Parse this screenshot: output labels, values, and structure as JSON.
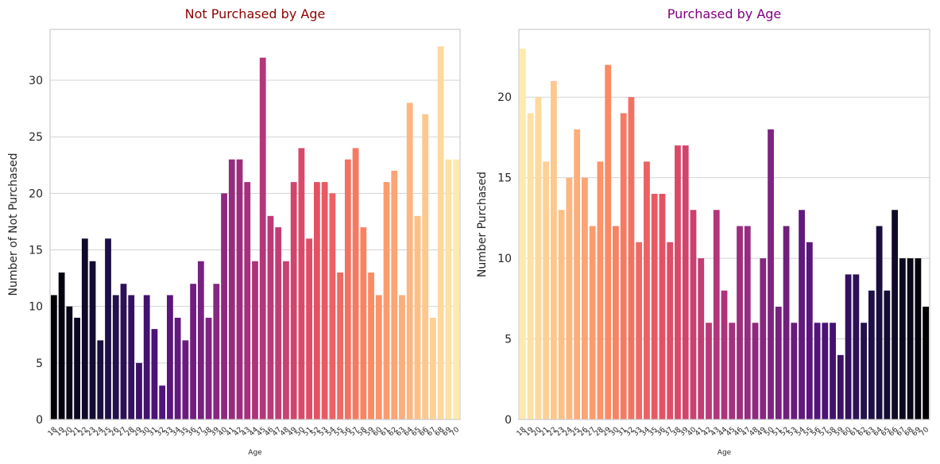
{
  "chart_data": [
    {
      "type": "bar",
      "title": "Not Purchased by Age",
      "title_color": "#8b0000",
      "xlabel": "Age",
      "ylabel": "Number of Not Purchased",
      "ylim": [
        0,
        34.5
      ],
      "yticks": [
        0,
        5,
        10,
        15,
        20,
        25,
        30
      ],
      "grid": "horizontal",
      "palette": "magma",
      "palette_direction": "dark-to-light",
      "categories": [
        "18",
        "19",
        "20",
        "21",
        "22",
        "23",
        "24",
        "25",
        "26",
        "27",
        "28",
        "29",
        "30",
        "31",
        "32",
        "33",
        "34",
        "35",
        "36",
        "37",
        "38",
        "39",
        "40",
        "41",
        "42",
        "43",
        "44",
        "45",
        "46",
        "47",
        "48",
        "49",
        "50",
        "51",
        "52",
        "53",
        "54",
        "55",
        "56",
        "57",
        "58",
        "59",
        "60",
        "61",
        "62",
        "63",
        "64",
        "65",
        "66",
        "67",
        "68",
        "69",
        "70"
      ],
      "values": [
        11,
        13,
        10,
        9,
        16,
        14,
        7,
        16,
        11,
        12,
        11,
        5,
        11,
        8,
        3,
        11,
        9,
        7,
        12,
        14,
        9,
        12,
        20,
        23,
        23,
        21,
        14,
        32,
        18,
        17,
        14,
        21,
        24,
        16,
        21,
        21,
        20,
        13,
        23,
        24,
        17,
        13,
        11,
        21,
        22,
        11,
        28,
        18,
        27,
        9,
        33,
        23,
        23
      ]
    },
    {
      "type": "bar",
      "title": "Purchased by Age",
      "title_color": "#800080",
      "xlabel": "Age",
      "ylabel": "Number Purchased",
      "ylim": [
        0,
        24.2
      ],
      "yticks": [
        0,
        5,
        10,
        15,
        20
      ],
      "grid": "horizontal",
      "palette": "magma",
      "palette_direction": "light-to-dark",
      "categories": [
        "18",
        "19",
        "20",
        "21",
        "22",
        "23",
        "24",
        "25",
        "26",
        "27",
        "28",
        "29",
        "30",
        "31",
        "32",
        "33",
        "34",
        "35",
        "36",
        "37",
        "38",
        "39",
        "40",
        "41",
        "42",
        "43",
        "44",
        "45",
        "46",
        "47",
        "48",
        "49",
        "50",
        "51",
        "52",
        "53",
        "54",
        "55",
        "56",
        "57",
        "58",
        "59",
        "60",
        "61",
        "62",
        "63",
        "64",
        "65",
        "66",
        "67",
        "68",
        "69",
        "70"
      ],
      "values": [
        23,
        19,
        20,
        16,
        21,
        13,
        15,
        18,
        15,
        12,
        16,
        22,
        12,
        19,
        20,
        11,
        16,
        14,
        14,
        11,
        17,
        17,
        13,
        10,
        6,
        13,
        8,
        6,
        12,
        12,
        6,
        10,
        18,
        7,
        12,
        6,
        13,
        11,
        6,
        6,
        6,
        4,
        9,
        9,
        6,
        8,
        12,
        8,
        13,
        10,
        10,
        10,
        7
      ]
    }
  ]
}
